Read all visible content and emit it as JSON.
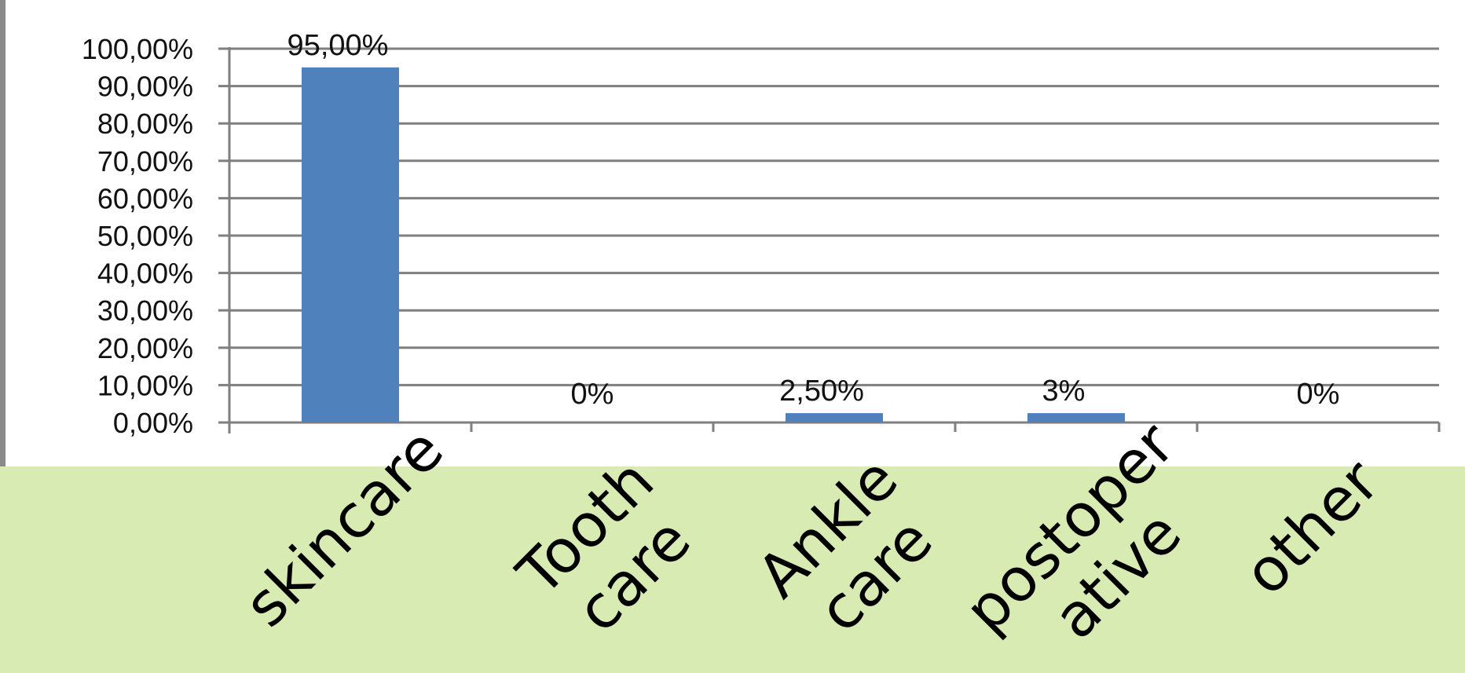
{
  "colors": {
    "bar": "#4f81bd",
    "grid": "#7f7f7f",
    "overlay_band": "#d8ebb2",
    "left_border": "#8a8a8a"
  },
  "chart_data": {
    "type": "bar",
    "categories": [
      "skincare",
      "Tooth care",
      "Ankle care",
      "postoperative",
      "other"
    ],
    "category_label_lines": [
      [
        "skincare"
      ],
      [
        "Tooth",
        "care"
      ],
      [
        "Ankle",
        "care"
      ],
      [
        "postoper",
        "ative"
      ],
      [
        "other"
      ]
    ],
    "values": [
      95.0,
      0,
      2.5,
      2.5,
      0
    ],
    "data_labels": [
      "95,00%",
      "0%",
      "2,50%",
      "3%",
      "0%"
    ],
    "y_ticks": [
      "0,00%",
      "10,00%",
      "20,00%",
      "30,00%",
      "40,00%",
      "50,00%",
      "60,00%",
      "70,00%",
      "80,00%",
      "90,00%",
      "100,00%"
    ],
    "ylim": [
      0,
      100
    ],
    "grid": true,
    "title": "",
    "xlabel": "",
    "ylabel": ""
  }
}
